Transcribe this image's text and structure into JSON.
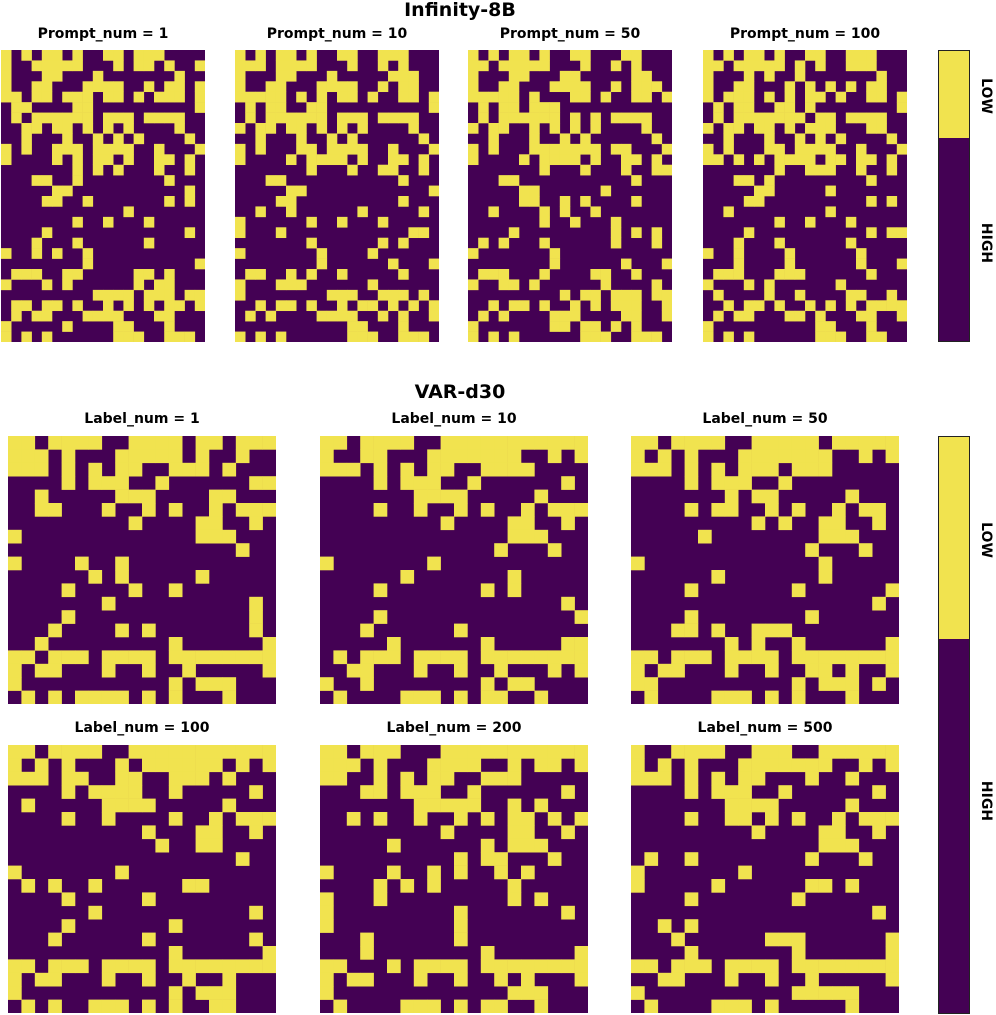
{
  "colors": {
    "low": "#f1e34f",
    "high": "#440154"
  },
  "sections": {
    "infinity": {
      "title": "Infinity-8B"
    },
    "var": {
      "title": "VAR-d30"
    }
  },
  "chart_data": [
    {
      "type": "heatmap",
      "title": "Prompt_num = 1",
      "colorbar_labels": [
        "LOW",
        "HIGH"
      ],
      "grid": {
        "rows": 28,
        "cols": 20,
        "pattern": "infinity",
        "levels": [
          "LOW",
          "HIGH"
        ],
        "variant": 0
      }
    },
    {
      "type": "heatmap",
      "title": "Prompt_num = 10",
      "grid": {
        "rows": 28,
        "cols": 20,
        "pattern": "infinity",
        "levels": [
          "LOW",
          "HIGH"
        ],
        "variant": 1
      }
    },
    {
      "type": "heatmap",
      "title": "Prompt_num = 50",
      "grid": {
        "rows": 28,
        "cols": 20,
        "pattern": "infinity",
        "levels": [
          "LOW",
          "HIGH"
        ],
        "variant": 2
      }
    },
    {
      "type": "heatmap",
      "title": "Prompt_num = 100",
      "grid": {
        "rows": 28,
        "cols": 20,
        "pattern": "infinity",
        "levels": [
          "LOW",
          "HIGH"
        ],
        "variant": 3
      }
    },
    {
      "type": "heatmap",
      "title": "Label_num = 1",
      "colorbar_labels": [
        "LOW",
        "HIGH"
      ],
      "grid": {
        "rows": 20,
        "cols": 20,
        "pattern": "var",
        "levels": [
          "LOW",
          "HIGH"
        ],
        "variant": 0
      }
    },
    {
      "type": "heatmap",
      "title": "Label_num = 10",
      "grid": {
        "rows": 20,
        "cols": 20,
        "pattern": "var",
        "levels": [
          "LOW",
          "HIGH"
        ],
        "variant": 1
      }
    },
    {
      "type": "heatmap",
      "title": "Label_num = 50",
      "grid": {
        "rows": 20,
        "cols": 20,
        "pattern": "var",
        "levels": [
          "LOW",
          "HIGH"
        ],
        "variant": 2
      }
    },
    {
      "type": "heatmap",
      "title": "Label_num = 100",
      "grid": {
        "rows": 20,
        "cols": 20,
        "pattern": "var",
        "levels": [
          "LOW",
          "HIGH"
        ],
        "variant": 3
      }
    },
    {
      "type": "heatmap",
      "title": "Label_num = 200",
      "grid": {
        "rows": 20,
        "cols": 20,
        "pattern": "var",
        "levels": [
          "LOW",
          "HIGH"
        ],
        "variant": 4
      }
    },
    {
      "type": "heatmap",
      "title": "Label_num = 500",
      "grid": {
        "rows": 20,
        "cols": 20,
        "pattern": "var",
        "levels": [
          "LOW",
          "HIGH"
        ],
        "variant": 5
      }
    }
  ]
}
